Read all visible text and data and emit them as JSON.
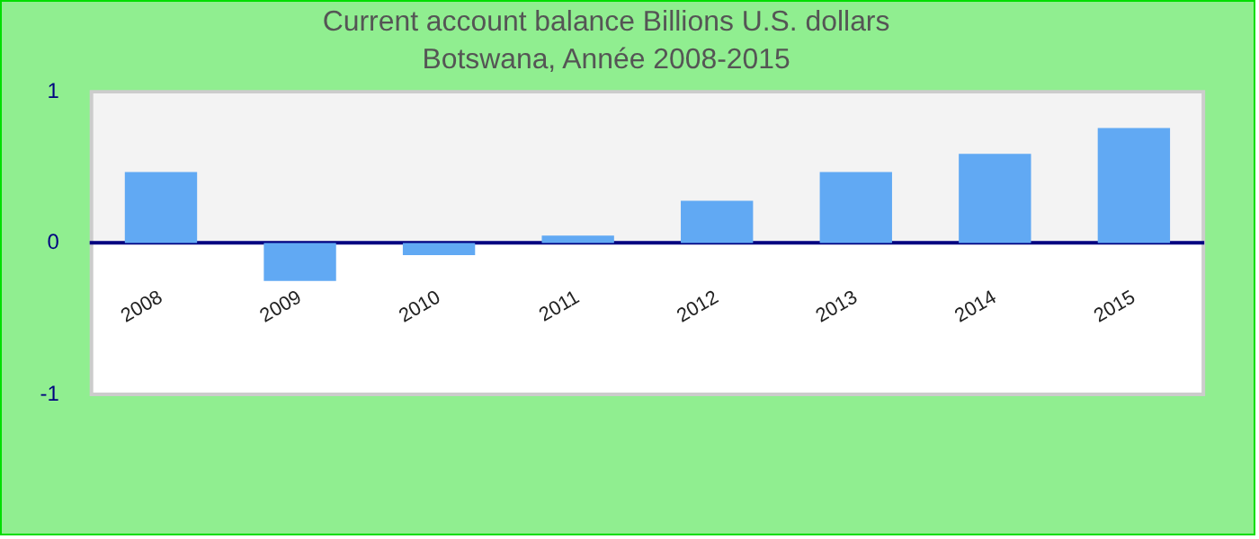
{
  "chart_data": {
    "type": "bar",
    "title": "Current account balance Billions U.S. dollars",
    "subtitle": "Botswana, Année 2008-2015",
    "categories": [
      "2008",
      "2009",
      "2010",
      "2011",
      "2012",
      "2013",
      "2014",
      "2015"
    ],
    "values": [
      0.47,
      -0.25,
      -0.08,
      0.05,
      0.28,
      0.47,
      0.59,
      0.76
    ],
    "color": "#61a9f3",
    "ylim": [
      -1,
      1
    ],
    "yticks": [
      -1,
      0,
      1
    ],
    "grid": false,
    "legend": false,
    "bands": [
      {
        "axis": "y",
        "from": 0,
        "to": 1,
        "color": "#f3f3f3"
      }
    ]
  }
}
